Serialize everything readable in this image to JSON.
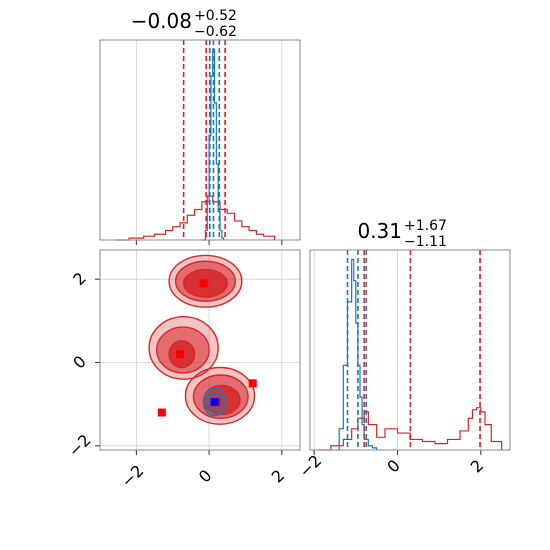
{
  "colors": {
    "red": "#d62728",
    "blue": "#1f77b4",
    "marker_blue": "#0000ff",
    "marker_red": "#ff0000"
  },
  "chart_data": {
    "type": "corner",
    "grid": true,
    "x_range": [
      -3,
      2.5
    ],
    "y_range": [
      -2.1,
      2.7
    ],
    "panels": [
      {
        "panel": "histogram-param-1",
        "type": "line",
        "title": {
          "value": "−0.08",
          "plus": "+0.52",
          "minus": "−0.62"
        },
        "xlim": [
          -3,
          2.5
        ],
        "x_ticks": [
          -2,
          0,
          2
        ],
        "x_tick_labels": [
          "",
          "",
          ""
        ],
        "series": [
          {
            "color": "red",
            "style": "step",
            "x": [
              -2.6,
              -2.2,
              -1.8,
              -1.5,
              -1.2,
              -1.0,
              -0.8,
              -0.6,
              -0.4,
              -0.2,
              -0.05,
              0.1,
              0.3,
              0.5,
              0.7,
              0.9,
              1.1,
              1.3,
              1.5,
              1.8
            ],
            "y": [
              0.0,
              0.01,
              0.02,
              0.03,
              0.05,
              0.07,
              0.09,
              0.13,
              0.16,
              0.2,
              0.23,
              0.2,
              0.16,
              0.14,
              0.1,
              0.07,
              0.05,
              0.03,
              0.02,
              0.0
            ]
          },
          {
            "color": "blue",
            "style": "step",
            "x": [
              -0.2,
              -0.1,
              -0.05,
              0.0,
              0.05,
              0.1,
              0.15,
              0.2,
              0.25,
              0.3,
              0.35,
              0.4
            ],
            "y": [
              0.0,
              0.05,
              0.2,
              0.55,
              0.86,
              1.0,
              0.72,
              0.4,
              0.15,
              0.05,
              0.01,
              0.0
            ]
          }
        ],
        "vlines": [
          {
            "color": "red",
            "x": -0.7
          },
          {
            "color": "red",
            "x": -0.08
          },
          {
            "color": "red",
            "x": 0.44
          },
          {
            "color": "blue",
            "x": 0.02
          },
          {
            "color": "blue",
            "x": 0.12
          },
          {
            "color": "blue",
            "x": 0.28
          }
        ]
      },
      {
        "panel": "scatter-2d",
        "type": "scatter",
        "xlim": [
          -3,
          2.5
        ],
        "ylim": [
          -2.1,
          2.7
        ],
        "x_ticks": [
          -2,
          0,
          2
        ],
        "y_ticks": [
          -2,
          0,
          2
        ],
        "x_tick_labels": [
          "−2",
          "0",
          "2"
        ],
        "y_tick_labels": [
          "−2",
          "0",
          "2"
        ],
        "contours": [
          {
            "color": "red",
            "level": "outer",
            "cx": -0.1,
            "cy": 1.95,
            "rx": 1.0,
            "ry": 0.62
          },
          {
            "color": "red",
            "level": "mid",
            "cx": -0.1,
            "cy": 1.95,
            "rx": 0.82,
            "ry": 0.48
          },
          {
            "color": "red",
            "level": "inner",
            "cx": -0.1,
            "cy": 1.9,
            "rx": 0.6,
            "ry": 0.33
          },
          {
            "color": "red",
            "level": "outer",
            "cx": -0.7,
            "cy": 0.35,
            "rx": 0.95,
            "ry": 0.75
          },
          {
            "color": "red",
            "level": "mid",
            "cx": -0.72,
            "cy": 0.3,
            "rx": 0.72,
            "ry": 0.55
          },
          {
            "color": "red",
            "level": "inner",
            "cx": -0.75,
            "cy": 0.2,
            "rx": 0.35,
            "ry": 0.32
          },
          {
            "color": "red",
            "level": "outer",
            "cx": 0.3,
            "cy": -0.8,
            "rx": 0.95,
            "ry": 0.68
          },
          {
            "color": "red",
            "level": "mid",
            "cx": 0.32,
            "cy": -0.82,
            "rx": 0.75,
            "ry": 0.52
          },
          {
            "color": "red",
            "level": "inner",
            "cx": 0.35,
            "cy": -0.9,
            "rx": 0.5,
            "ry": 0.35
          },
          {
            "color": "blue",
            "level": "outer",
            "cx": 0.15,
            "cy": -0.95,
            "rx": 0.3,
            "ry": 0.32
          },
          {
            "color": "blue",
            "level": "inner",
            "cx": 0.15,
            "cy": -0.95,
            "rx": 0.18,
            "ry": 0.2
          }
        ],
        "markers": [
          {
            "color": "marker_red",
            "x": -0.15,
            "y": 1.9
          },
          {
            "color": "marker_red",
            "x": -0.8,
            "y": 0.2
          },
          {
            "color": "marker_red",
            "x": 1.2,
            "y": -0.5
          },
          {
            "color": "marker_red",
            "x": -1.3,
            "y": -1.2
          },
          {
            "color": "marker_red",
            "x": 0.2,
            "y": -0.95
          },
          {
            "color": "marker_blue",
            "x": 0.15,
            "y": -0.95
          }
        ]
      },
      {
        "panel": "histogram-param-2",
        "type": "line",
        "title": {
          "value": "0.31",
          "plus": "+1.67",
          "minus": "−1.11"
        },
        "xlim": [
          -2.1,
          2.7
        ],
        "x_ticks": [
          -2,
          0,
          2
        ],
        "x_tick_labels": [
          "−2",
          "0",
          "2"
        ],
        "series": [
          {
            "color": "red",
            "style": "step",
            "x": [
              -1.9,
              -1.6,
              -1.3,
              -1.1,
              -0.95,
              -0.8,
              -0.7,
              -0.5,
              -0.3,
              0.0,
              0.3,
              0.6,
              0.9,
              1.2,
              1.5,
              1.7,
              1.8,
              1.9,
              2.0,
              2.1,
              2.25,
              2.5
            ],
            "y": [
              0.0,
              0.02,
              0.05,
              0.1,
              0.15,
              0.18,
              0.12,
              0.06,
              0.1,
              0.08,
              0.05,
              0.04,
              0.03,
              0.05,
              0.09,
              0.15,
              0.19,
              0.2,
              0.18,
              0.12,
              0.04,
              0.0
            ]
          },
          {
            "color": "blue",
            "style": "step",
            "x": [
              -1.5,
              -1.4,
              -1.3,
              -1.2,
              -1.1,
              -1.05,
              -1.0,
              -0.95,
              -0.9,
              -0.85,
              -0.8,
              -0.7,
              -0.6,
              -0.5
            ],
            "y": [
              0.0,
              0.1,
              0.4,
              0.7,
              0.9,
              0.8,
              0.6,
              0.4,
              0.25,
              0.12,
              0.05,
              0.02,
              0.01,
              0.0
            ]
          }
        ],
        "vlines": [
          {
            "color": "red",
            "x": -0.8
          },
          {
            "color": "red",
            "x": 0.31
          },
          {
            "color": "red",
            "x": 1.98
          },
          {
            "color": "blue",
            "x": -1.2
          },
          {
            "color": "blue",
            "x": -0.95
          },
          {
            "color": "blue",
            "x": -0.75
          }
        ]
      }
    ]
  }
}
